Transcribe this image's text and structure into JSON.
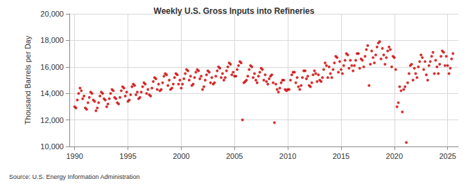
{
  "chart_data": {
    "type": "scatter",
    "title": "Weekly U.S. Gross Inputs into Refineries",
    "y_label": "Thousand Barrels per Day",
    "source": "Source: U.S. Energy Information Administration",
    "color": "#cc0000",
    "marker": "circle",
    "grid": true,
    "xlim": [
      1989.5,
      2026
    ],
    "xticks": [
      1990,
      1995,
      2000,
      2005,
      2010,
      2015,
      2020,
      2025
    ],
    "ylim": [
      10000,
      20000
    ],
    "yticks": [
      {
        "value": 10000,
        "label": "10,000"
      },
      {
        "value": 12000,
        "label": "12,000"
      },
      {
        "value": 14000,
        "label": "14,000"
      },
      {
        "value": 16000,
        "label": "16,000"
      },
      {
        "value": 18000,
        "label": "18,000"
      },
      {
        "value": 20000,
        "label": "20,000"
      }
    ],
    "x": [
      1990.0,
      1990.125,
      1990.25,
      1990.375,
      1990.5,
      1990.625,
      1990.75,
      1990.875,
      1991.0,
      1991.125,
      1991.25,
      1991.375,
      1991.5,
      1991.625,
      1991.75,
      1991.875,
      1992.0,
      1992.125,
      1992.25,
      1992.375,
      1992.5,
      1992.625,
      1992.75,
      1992.875,
      1993.0,
      1993.125,
      1993.25,
      1993.375,
      1993.5,
      1993.625,
      1993.75,
      1993.875,
      1994.0,
      1994.125,
      1994.25,
      1994.375,
      1994.5,
      1994.625,
      1994.75,
      1994.875,
      1995.0,
      1995.125,
      1995.25,
      1995.375,
      1995.5,
      1995.625,
      1995.75,
      1995.875,
      1996.0,
      1996.125,
      1996.25,
      1996.375,
      1996.5,
      1996.625,
      1996.75,
      1996.875,
      1997.0,
      1997.125,
      1997.25,
      1997.375,
      1997.5,
      1997.625,
      1997.75,
      1997.875,
      1998.0,
      1998.125,
      1998.25,
      1998.375,
      1998.5,
      1998.625,
      1998.75,
      1998.875,
      1999.0,
      1999.125,
      1999.25,
      1999.375,
      1999.5,
      1999.625,
      1999.75,
      1999.875,
      2000.0,
      2000.125,
      2000.25,
      2000.375,
      2000.5,
      2000.625,
      2000.75,
      2000.875,
      2001.0,
      2001.125,
      2001.25,
      2001.375,
      2001.5,
      2001.625,
      2001.75,
      2001.875,
      2002.0,
      2002.125,
      2002.25,
      2002.375,
      2002.5,
      2002.625,
      2002.75,
      2002.875,
      2003.0,
      2003.125,
      2003.25,
      2003.375,
      2003.5,
      2003.625,
      2003.75,
      2003.875,
      2004.0,
      2004.125,
      2004.25,
      2004.375,
      2004.5,
      2004.625,
      2004.75,
      2004.875,
      2005.0,
      2005.125,
      2005.25,
      2005.375,
      2005.5,
      2005.625,
      2005.75,
      2005.875,
      2006.0,
      2006.125,
      2006.25,
      2006.375,
      2006.5,
      2006.625,
      2006.75,
      2006.875,
      2007.0,
      2007.125,
      2007.25,
      2007.375,
      2007.5,
      2007.625,
      2007.75,
      2007.875,
      2008.0,
      2008.125,
      2008.25,
      2008.375,
      2008.5,
      2008.625,
      2008.75,
      2008.875,
      2009.0,
      2009.125,
      2009.25,
      2009.375,
      2009.5,
      2009.625,
      2009.75,
      2009.875,
      2010.0,
      2010.125,
      2010.25,
      2010.375,
      2010.5,
      2010.625,
      2010.75,
      2010.875,
      2011.0,
      2011.125,
      2011.25,
      2011.375,
      2011.5,
      2011.625,
      2011.75,
      2011.875,
      2012.0,
      2012.125,
      2012.25,
      2012.375,
      2012.5,
      2012.625,
      2012.75,
      2012.875,
      2013.0,
      2013.125,
      2013.25,
      2013.375,
      2013.5,
      2013.625,
      2013.75,
      2013.875,
      2014.0,
      2014.125,
      2014.25,
      2014.375,
      2014.5,
      2014.625,
      2014.75,
      2014.875,
      2015.0,
      2015.125,
      2015.25,
      2015.375,
      2015.5,
      2015.625,
      2015.75,
      2015.875,
      2016.0,
      2016.125,
      2016.25,
      2016.375,
      2016.5,
      2016.625,
      2016.75,
      2016.875,
      2017.0,
      2017.125,
      2017.25,
      2017.375,
      2017.5,
      2017.625,
      2017.75,
      2017.875,
      2018.0,
      2018.125,
      2018.25,
      2018.375,
      2018.5,
      2018.625,
      2018.75,
      2018.875,
      2019.0,
      2019.125,
      2019.25,
      2019.375,
      2019.5,
      2019.625,
      2019.75,
      2019.875,
      2020.0,
      2020.125,
      2020.25,
      2020.375,
      2020.5,
      2020.625,
      2020.75,
      2020.875,
      2021.0,
      2021.125,
      2021.25,
      2021.375,
      2021.5,
      2021.625,
      2021.75,
      2021.875,
      2022.0,
      2022.125,
      2022.25,
      2022.375,
      2022.5,
      2022.625,
      2022.75,
      2022.875,
      2023.0,
      2023.125,
      2023.25,
      2023.375,
      2023.5,
      2023.625,
      2023.75,
      2023.875,
      2024.0,
      2024.125,
      2024.25,
      2024.375,
      2024.5,
      2024.625,
      2024.75,
      2024.875,
      2025.0,
      2025.125,
      2025.25,
      2025.375,
      2025.5
    ],
    "values": [
      13000,
      12900,
      13500,
      14000,
      14400,
      14200,
      13600,
      13800,
      12900,
      12800,
      13300,
      13700,
      14100,
      14000,
      13500,
      13400,
      12700,
      12900,
      13300,
      13800,
      14100,
      14000,
      13600,
      13500,
      13000,
      13200,
      13600,
      14000,
      14300,
      14200,
      13700,
      13600,
      13300,
      13200,
      13700,
      14200,
      14500,
      14400,
      13800,
      14100,
      13400,
      13500,
      13900,
      14500,
      14700,
      14600,
      13900,
      14100,
      13600,
      13700,
      14100,
      14500,
      14800,
      14700,
      14000,
      14300,
      13900,
      13800,
      14400,
      14900,
      15200,
      15100,
      14300,
      14700,
      14200,
      14300,
      14800,
      15300,
      15500,
      15400,
      14600,
      15000,
      14300,
      14400,
      14700,
      15200,
      15500,
      15400,
      14700,
      15000,
      14400,
      14700,
      15100,
      15500,
      15800,
      15700,
      15000,
      15300,
      14600,
      14700,
      15200,
      15600,
      15800,
      15700,
      15100,
      15300,
      14300,
      14500,
      15000,
      15400,
      15700,
      15600,
      14800,
      15200,
      14700,
      14800,
      15300,
      15700,
      16000,
      15900,
      15200,
      15500,
      15000,
      15200,
      15700,
      16000,
      16300,
      16200,
      15400,
      15600,
      15300,
      15300,
      15800,
      16100,
      16400,
      16300,
      12000,
      14800,
      14900,
      15000,
      15300,
      15800,
      16100,
      16000,
      15200,
      15500,
      15000,
      14800,
      15300,
      15600,
      15900,
      15800,
      15000,
      15400,
      14900,
      14700,
      15100,
      15300,
      15400,
      14800,
      11800,
      14700,
      14300,
      14100,
      14400,
      14800,
      15000,
      15000,
      14300,
      14200,
      14300,
      14300,
      15000,
      15400,
      15600,
      15600,
      14800,
      15200,
      14500,
      14300,
      14600,
      15200,
      15700,
      15700,
      15100,
      15300,
      14600,
      14500,
      14800,
      15400,
      15700,
      15500,
      14900,
      15400,
      15000,
      14900,
      15200,
      15800,
      16300,
      16100,
      15200,
      16000,
      15500,
      15200,
      15800,
      16300,
      16800,
      16700,
      15600,
      16400,
      15800,
      15500,
      16100,
      16500,
      17000,
      16900,
      15900,
      16500,
      16100,
      15700,
      16100,
      16500,
      17000,
      17000,
      15900,
      16600,
      16500,
      16000,
      16800,
      17300,
      17600,
      14600,
      16200,
      17200,
      16700,
      16300,
      16900,
      17500,
      17800,
      17900,
      16600,
      17400,
      16900,
      16200,
      16700,
      17200,
      17500,
      17300,
      16000,
      16800,
      16700,
      15800,
      13000,
      13300,
      14500,
      14200,
      12600,
      14300,
      14500,
      10300,
      14800,
      15500,
      16100,
      16200,
      15000,
      15900,
      15500,
      15200,
      16000,
      16400,
      16900,
      16700,
      15800,
      16400,
      15400,
      15000,
      16100,
      16400,
      16800,
      17100,
      15500,
      16500,
      16000,
      15500,
      16200,
      16800,
      17200,
      17100,
      16100,
      16800,
      16100,
      15500,
      15900,
      16600,
      17000
    ]
  }
}
